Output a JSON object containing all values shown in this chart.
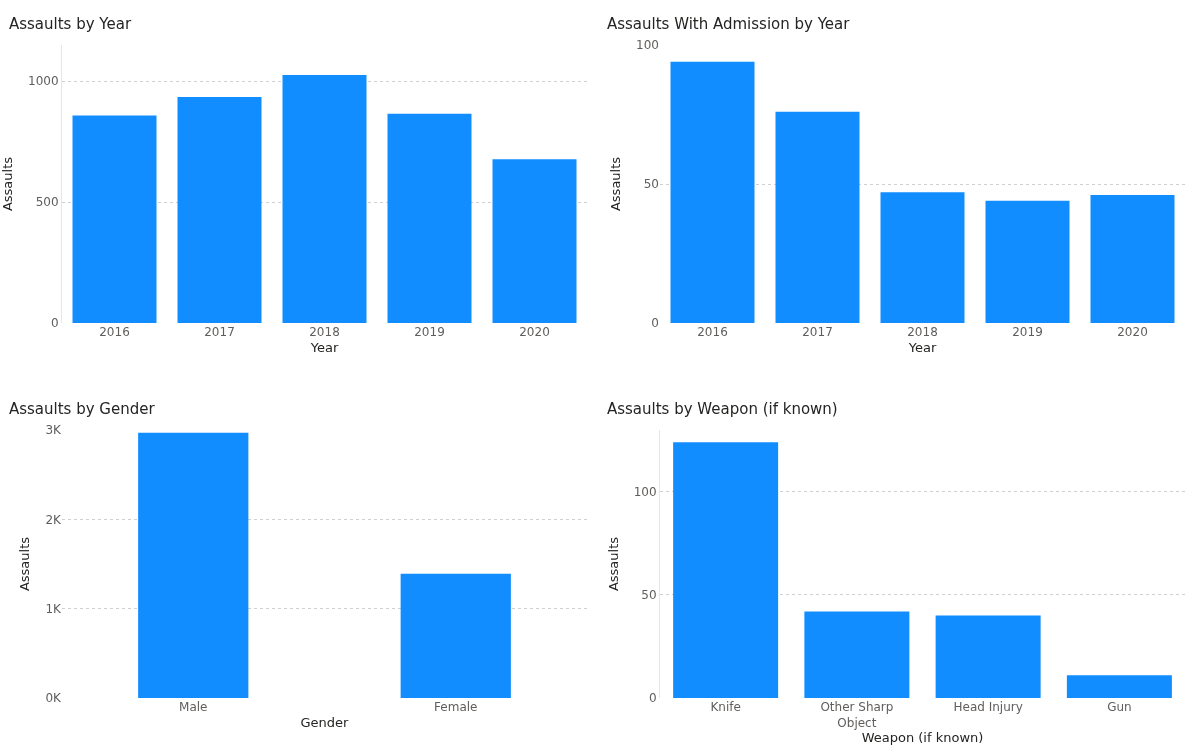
{
  "chart_data": [
    {
      "type": "bar",
      "title": "Assaults by Year",
      "xlabel": "Year",
      "ylabel": "Assaults",
      "categories": [
        "2016",
        "2017",
        "2018",
        "2019",
        "2020"
      ],
      "values": [
        858,
        935,
        1026,
        866,
        677
      ],
      "color": "#118dff",
      "ylim": [
        0,
        1150
      ],
      "yticks": [
        0,
        500,
        1000
      ],
      "grid": "y"
    },
    {
      "type": "bar",
      "title": "Assaults With Admission by Year",
      "xlabel": "Year",
      "ylabel": "Assaults",
      "categories": [
        "2016",
        "2017",
        "2018",
        "2019",
        "2020"
      ],
      "values": [
        94,
        76,
        47,
        44,
        46
      ],
      "color": "#118dff",
      "ylim": [
        0,
        100
      ],
      "yticks": [
        0,
        50,
        100
      ],
      "grid": "y"
    },
    {
      "type": "bar",
      "title": "Assaults by Gender",
      "xlabel": "Gender",
      "ylabel": "Assaults",
      "categories": [
        "Male",
        "Female"
      ],
      "values": [
        2970,
        1390
      ],
      "color": "#118dff",
      "ylim": [
        0,
        3000
      ],
      "yticks": [
        {
          "value": 0,
          "label": "0K"
        },
        {
          "value": 1000,
          "label": "1K"
        },
        {
          "value": 2000,
          "label": "2K"
        },
        {
          "value": 3000,
          "label": "3K"
        }
      ],
      "grid": "y"
    },
    {
      "type": "bar",
      "title": "Assaults by Weapon (if known)",
      "xlabel": "Weapon (if known)",
      "ylabel": "Assaults",
      "categories": [
        "Knife",
        "Other Sharp Object",
        "Head Injury",
        "Gun"
      ],
      "values": [
        124,
        42,
        40,
        11
      ],
      "color": "#118dff",
      "ylim": [
        0,
        130
      ],
      "yticks": [
        0,
        50,
        100
      ],
      "grid": "y"
    }
  ]
}
